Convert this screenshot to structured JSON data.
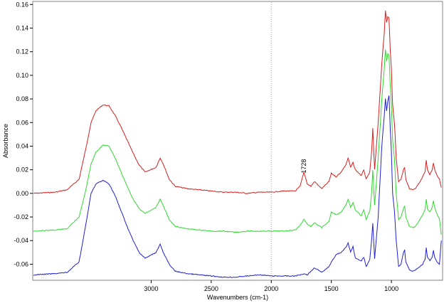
{
  "chart_data": {
    "type": "line",
    "title": "",
    "xlabel": "Wavenumbers (cm-1)",
    "ylabel": "Absorbance",
    "xlim": [
      3980,
      580
    ],
    "ylim": [
      -0.073,
      0.162
    ],
    "x_ticks": [
      3000,
      2500,
      2000,
      1500,
      1000
    ],
    "y_ticks": [
      -0.06,
      -0.04,
      -0.02,
      0.0,
      0.02,
      0.04,
      0.06,
      0.08,
      0.1,
      0.12,
      0.14,
      0.16
    ],
    "vertical_reference_line": 2000,
    "grid": false,
    "legend": "none",
    "annotations": [
      {
        "text": "1728",
        "x": 1728,
        "y": 0.017
      }
    ],
    "series": [
      {
        "color": "#d42020",
        "points": [
          [
            3980,
            0.0
          ],
          [
            3800,
            0.001
          ],
          [
            3700,
            0.003
          ],
          [
            3600,
            0.012
          ],
          [
            3550,
            0.035
          ],
          [
            3500,
            0.06
          ],
          [
            3460,
            0.07
          ],
          [
            3400,
            0.075
          ],
          [
            3350,
            0.074
          ],
          [
            3300,
            0.066
          ],
          [
            3250,
            0.056
          ],
          [
            3200,
            0.045
          ],
          [
            3150,
            0.034
          ],
          [
            3100,
            0.024
          ],
          [
            3050,
            0.018
          ],
          [
            2960,
            0.022
          ],
          [
            2925,
            0.03
          ],
          [
            2900,
            0.025
          ],
          [
            2850,
            0.012
          ],
          [
            2800,
            0.006
          ],
          [
            2700,
            0.004
          ],
          [
            2600,
            0.003
          ],
          [
            2500,
            0.002
          ],
          [
            2400,
            0.001
          ],
          [
            2300,
            0.001
          ],
          [
            2200,
            0.0
          ],
          [
            2100,
            0.001
          ],
          [
            2000,
            0.001
          ],
          [
            1900,
            0.002
          ],
          [
            1800,
            0.002
          ],
          [
            1760,
            0.006
          ],
          [
            1728,
            0.018
          ],
          [
            1700,
            0.008
          ],
          [
            1670,
            0.006
          ],
          [
            1640,
            0.01
          ],
          [
            1610,
            0.007
          ],
          [
            1580,
            0.004
          ],
          [
            1520,
            0.01
          ],
          [
            1500,
            0.017
          ],
          [
            1460,
            0.014
          ],
          [
            1420,
            0.018
          ],
          [
            1380,
            0.024
          ],
          [
            1360,
            0.03
          ],
          [
            1340,
            0.022
          ],
          [
            1320,
            0.026
          ],
          [
            1300,
            0.02
          ],
          [
            1280,
            0.018
          ],
          [
            1250,
            0.015
          ],
          [
            1230,
            0.02
          ],
          [
            1210,
            0.012
          ],
          [
            1180,
            0.018
          ],
          [
            1165,
            0.035
          ],
          [
            1155,
            0.055
          ],
          [
            1140,
            0.02
          ],
          [
            1110,
            0.06
          ],
          [
            1080,
            0.11
          ],
          [
            1060,
            0.135
          ],
          [
            1050,
            0.155
          ],
          [
            1040,
            0.145
          ],
          [
            1030,
            0.15
          ],
          [
            1020,
            0.148
          ],
          [
            1010,
            0.122
          ],
          [
            1000,
            0.105
          ],
          [
            990,
            0.075
          ],
          [
            975,
            0.06
          ],
          [
            960,
            0.03
          ],
          [
            940,
            0.01
          ],
          [
            920,
            0.012
          ],
          [
            900,
            0.02
          ],
          [
            890,
            0.022
          ],
          [
            880,
            0.012
          ],
          [
            850,
            0.004
          ],
          [
            820,
            0.003
          ],
          [
            800,
            0.004
          ],
          [
            760,
            0.01
          ],
          [
            740,
            0.014
          ],
          [
            720,
            0.018
          ],
          [
            710,
            0.028
          ],
          [
            700,
            0.02
          ],
          [
            680,
            0.016
          ],
          [
            660,
            0.02
          ],
          [
            650,
            0.026
          ],
          [
            640,
            0.02
          ],
          [
            620,
            0.015
          ],
          [
            600,
            0.012
          ],
          [
            585,
            0.005
          ]
        ]
      },
      {
        "color": "#30d830",
        "points": [
          [
            3980,
            -0.032
          ],
          [
            3800,
            -0.031
          ],
          [
            3700,
            -0.03
          ],
          [
            3600,
            -0.02
          ],
          [
            3550,
            0.0
          ],
          [
            3500,
            0.025
          ],
          [
            3460,
            0.035
          ],
          [
            3400,
            0.041
          ],
          [
            3350,
            0.04
          ],
          [
            3300,
            0.03
          ],
          [
            3250,
            0.018
          ],
          [
            3200,
            0.006
          ],
          [
            3150,
            -0.005
          ],
          [
            3100,
            -0.013
          ],
          [
            3050,
            -0.017
          ],
          [
            2960,
            -0.012
          ],
          [
            2925,
            -0.005
          ],
          [
            2900,
            -0.01
          ],
          [
            2850,
            -0.022
          ],
          [
            2800,
            -0.028
          ],
          [
            2700,
            -0.03
          ],
          [
            2600,
            -0.031
          ],
          [
            2500,
            -0.032
          ],
          [
            2400,
            -0.032
          ],
          [
            2300,
            -0.033
          ],
          [
            2200,
            -0.032
          ],
          [
            2100,
            -0.032
          ],
          [
            2000,
            -0.032
          ],
          [
            1900,
            -0.032
          ],
          [
            1800,
            -0.031
          ],
          [
            1760,
            -0.027
          ],
          [
            1728,
            -0.022
          ],
          [
            1700,
            -0.026
          ],
          [
            1670,
            -0.028
          ],
          [
            1640,
            -0.025
          ],
          [
            1610,
            -0.027
          ],
          [
            1580,
            -0.029
          ],
          [
            1520,
            -0.024
          ],
          [
            1500,
            -0.016
          ],
          [
            1460,
            -0.018
          ],
          [
            1420,
            -0.016
          ],
          [
            1380,
            -0.01
          ],
          [
            1360,
            -0.005
          ],
          [
            1340,
            -0.012
          ],
          [
            1320,
            -0.008
          ],
          [
            1300,
            -0.014
          ],
          [
            1280,
            -0.016
          ],
          [
            1250,
            -0.019
          ],
          [
            1230,
            -0.014
          ],
          [
            1210,
            -0.022
          ],
          [
            1180,
            -0.015
          ],
          [
            1165,
            0.0
          ],
          [
            1155,
            0.02
          ],
          [
            1140,
            -0.01
          ],
          [
            1110,
            0.03
          ],
          [
            1080,
            0.08
          ],
          [
            1060,
            0.105
          ],
          [
            1050,
            0.122
          ],
          [
            1040,
            0.112
          ],
          [
            1030,
            0.118
          ],
          [
            1020,
            0.117
          ],
          [
            1010,
            0.092
          ],
          [
            1000,
            0.075
          ],
          [
            990,
            0.045
          ],
          [
            975,
            0.03
          ],
          [
            960,
            0.0
          ],
          [
            940,
            -0.022
          ],
          [
            920,
            -0.02
          ],
          [
            900,
            -0.013
          ],
          [
            890,
            -0.011
          ],
          [
            880,
            -0.02
          ],
          [
            850,
            -0.028
          ],
          [
            820,
            -0.029
          ],
          [
            800,
            -0.028
          ],
          [
            760,
            -0.022
          ],
          [
            740,
            -0.018
          ],
          [
            720,
            -0.014
          ],
          [
            710,
            -0.005
          ],
          [
            700,
            -0.013
          ],
          [
            680,
            -0.016
          ],
          [
            660,
            -0.012
          ],
          [
            650,
            -0.006
          ],
          [
            640,
            -0.012
          ],
          [
            620,
            -0.018
          ],
          [
            600,
            -0.022
          ],
          [
            585,
            -0.035
          ]
        ]
      },
      {
        "color": "#2020d0",
        "points": [
          [
            3980,
            -0.069
          ],
          [
            3800,
            -0.068
          ],
          [
            3700,
            -0.067
          ],
          [
            3600,
            -0.058
          ],
          [
            3550,
            -0.03
          ],
          [
            3500,
            0.0
          ],
          [
            3460,
            0.008
          ],
          [
            3400,
            0.011
          ],
          [
            3350,
            0.008
          ],
          [
            3300,
            -0.002
          ],
          [
            3250,
            -0.015
          ],
          [
            3200,
            -0.028
          ],
          [
            3150,
            -0.04
          ],
          [
            3100,
            -0.05
          ],
          [
            3050,
            -0.055
          ],
          [
            2960,
            -0.05
          ],
          [
            2925,
            -0.043
          ],
          [
            2900,
            -0.05
          ],
          [
            2850,
            -0.06
          ],
          [
            2800,
            -0.066
          ],
          [
            2700,
            -0.068
          ],
          [
            2600,
            -0.069
          ],
          [
            2500,
            -0.07
          ],
          [
            2400,
            -0.071
          ],
          [
            2300,
            -0.071
          ],
          [
            2200,
            -0.07
          ],
          [
            2100,
            -0.069
          ],
          [
            2000,
            -0.07
          ],
          [
            1900,
            -0.07
          ],
          [
            1800,
            -0.07
          ],
          [
            1760,
            -0.069
          ],
          [
            1728,
            -0.068
          ],
          [
            1700,
            -0.069
          ],
          [
            1670,
            -0.066
          ],
          [
            1640,
            -0.063
          ],
          [
            1610,
            -0.065
          ],
          [
            1580,
            -0.067
          ],
          [
            1520,
            -0.062
          ],
          [
            1500,
            -0.058
          ],
          [
            1460,
            -0.052
          ],
          [
            1420,
            -0.05
          ],
          [
            1380,
            -0.046
          ],
          [
            1360,
            -0.042
          ],
          [
            1340,
            -0.05
          ],
          [
            1320,
            -0.045
          ],
          [
            1300,
            -0.055
          ],
          [
            1280,
            -0.056
          ],
          [
            1250,
            -0.057
          ],
          [
            1230,
            -0.054
          ],
          [
            1210,
            -0.062
          ],
          [
            1180,
            -0.056
          ],
          [
            1165,
            -0.04
          ],
          [
            1155,
            -0.025
          ],
          [
            1140,
            -0.055
          ],
          [
            1110,
            -0.02
          ],
          [
            1080,
            0.04
          ],
          [
            1060,
            0.065
          ],
          [
            1050,
            0.08
          ],
          [
            1040,
            0.07
          ],
          [
            1030,
            0.078
          ],
          [
            1020,
            0.083
          ],
          [
            1010,
            0.055
          ],
          [
            1000,
            0.035
          ],
          [
            990,
            0.0
          ],
          [
            975,
            -0.015
          ],
          [
            960,
            -0.04
          ],
          [
            940,
            -0.062
          ],
          [
            920,
            -0.06
          ],
          [
            900,
            -0.05
          ],
          [
            890,
            -0.048
          ],
          [
            880,
            -0.058
          ],
          [
            850,
            -0.065
          ],
          [
            820,
            -0.066
          ],
          [
            800,
            -0.065
          ],
          [
            760,
            -0.062
          ],
          [
            740,
            -0.06
          ],
          [
            720,
            -0.056
          ],
          [
            710,
            -0.046
          ],
          [
            700,
            -0.054
          ],
          [
            680,
            -0.057
          ],
          [
            660,
            -0.054
          ],
          [
            650,
            -0.048
          ],
          [
            640,
            -0.054
          ],
          [
            620,
            -0.058
          ],
          [
            600,
            -0.06
          ],
          [
            585,
            -0.04
          ]
        ]
      }
    ]
  }
}
